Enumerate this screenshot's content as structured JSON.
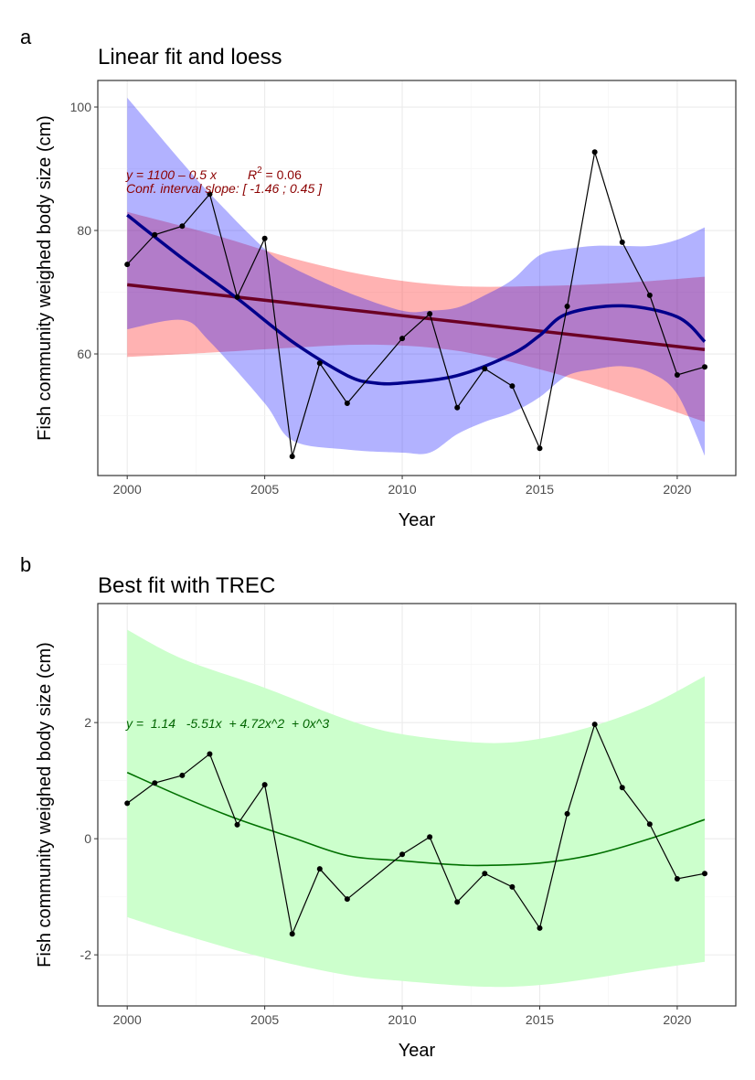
{
  "chart_data": [
    {
      "tag": "a",
      "type": "line",
      "title": "Linear fit and loess",
      "xlabel": "Year",
      "ylabel": "Fish community weighed body size (cm)",
      "xlim": [
        1998.93,
        2022.13
      ],
      "ylim": [
        40.3,
        104.3
      ],
      "xticks": [
        2000,
        2005,
        2010,
        2015,
        2020
      ],
      "yticks": [
        60,
        80,
        100
      ],
      "grid": true,
      "x": [
        2000,
        2001,
        2002,
        2003,
        2004,
        2005,
        2006,
        2007,
        2008,
        2010,
        2011,
        2012,
        2013,
        2014,
        2015,
        2016,
        2017,
        2018,
        2019,
        2020,
        2021
      ],
      "y": [
        74.5,
        79.3,
        80.7,
        85.9,
        69.2,
        78.7,
        43.4,
        58.5,
        52.0,
        62.5,
        66.5,
        51.3,
        57.6,
        54.8,
        44.7,
        67.7,
        92.7,
        78.1,
        69.5,
        56.6,
        57.9
      ],
      "linear_fit": {
        "x": [
          2000,
          2021
        ],
        "y": [
          71.2,
          60.7
        ],
        "color": "#6b0024",
        "ci_x": [
          2000,
          2003,
          2006,
          2009,
          2012,
          2015,
          2018,
          2021
        ],
        "ci_lower": [
          59.5,
          60.2,
          61,
          61.5,
          60.5,
          57.5,
          53.5,
          49
        ],
        "ci_upper": [
          83,
          79.5,
          75.5,
          72.5,
          71,
          71,
          71.5,
          72.5
        ],
        "ci_color": "#ff0000"
      },
      "loess": {
        "x": [
          2000,
          2002,
          2004,
          2006,
          2008,
          2009,
          2010,
          2012,
          2014,
          2015,
          2016,
          2018,
          2020,
          2021
        ],
        "y": [
          82.5,
          75.5,
          69,
          62,
          56.5,
          55.3,
          55.3,
          56.5,
          60,
          63,
          66.5,
          67.8,
          66,
          62
        ],
        "ci_x": [
          2000,
          2002,
          2003,
          2005,
          2006,
          2008,
          2010,
          2011,
          2012,
          2013,
          2014,
          2015,
          2016,
          2017,
          2018,
          2019,
          2020,
          2021
        ],
        "ci_lower": [
          64,
          65.5,
          62,
          52,
          46,
          44.5,
          44,
          44,
          47,
          49,
          50.5,
          53,
          56.5,
          57.5,
          58,
          57,
          53.5,
          43.5
        ],
        "ci_upper": [
          101.5,
          91,
          86,
          77,
          74,
          70,
          67,
          67,
          67.5,
          69.5,
          72,
          76,
          77,
          77.5,
          77.5,
          77.5,
          78.5,
          80.5
        ],
        "color": "#00008b",
        "ci_color": "#0000ff"
      },
      "annotations": [
        "y = 1100 – 0.5 x",
        "R",
        "2",
        " = 0.06",
        "Conf. interval slope:  [ -1.46 ; 0.45 ]"
      ],
      "annotation_color": "#8b0000"
    },
    {
      "tag": "b",
      "type": "line",
      "title": "Best fit with TREC",
      "xlabel": "Year",
      "ylabel": "Fish community weighed body size (cm)",
      "xlim": [
        1998.93,
        2022.13
      ],
      "ylim": [
        -2.88,
        4.05
      ],
      "xticks": [
        2000,
        2005,
        2010,
        2015,
        2020
      ],
      "yticks": [
        -2,
        0,
        2
      ],
      "grid": true,
      "x": [
        2000,
        2001,
        2002,
        2003,
        2004,
        2005,
        2006,
        2007,
        2008,
        2010,
        2011,
        2012,
        2013,
        2014,
        2015,
        2016,
        2017,
        2018,
        2019,
        2020,
        2021
      ],
      "y": [
        0.61,
        0.96,
        1.09,
        1.46,
        0.24,
        0.93,
        -1.64,
        -0.52,
        -1.04,
        -0.27,
        0.03,
        -1.09,
        -0.6,
        -0.83,
        -1.54,
        0.43,
        1.97,
        0.88,
        0.25,
        -0.69,
        -0.6
      ],
      "fit": {
        "x": [
          2000,
          2002,
          2004,
          2006,
          2008,
          2010,
          2012,
          2013,
          2015,
          2017,
          2019,
          2021
        ],
        "y": [
          1.14,
          0.72,
          0.34,
          0.02,
          -0.29,
          -0.38,
          -0.45,
          -0.46,
          -0.42,
          -0.27,
          0.0,
          0.33
        ],
        "ci_x": [
          2000,
          2002,
          2005,
          2008,
          2010,
          2013,
          2015,
          2017,
          2019,
          2021
        ],
        "ci_lower": [
          -1.35,
          -1.65,
          -2.05,
          -2.35,
          -2.45,
          -2.55,
          -2.52,
          -2.4,
          -2.25,
          -2.12
        ],
        "ci_upper": [
          3.6,
          3.1,
          2.6,
          2.05,
          1.8,
          1.65,
          1.72,
          1.95,
          2.3,
          2.8
        ],
        "color": "#007000",
        "ci_color": "#ccffcc"
      },
      "annotations": [
        "y =  1.14   -5.51x  + 4.72x^2  + 0x^3"
      ],
      "annotation_color": "#006400"
    }
  ]
}
